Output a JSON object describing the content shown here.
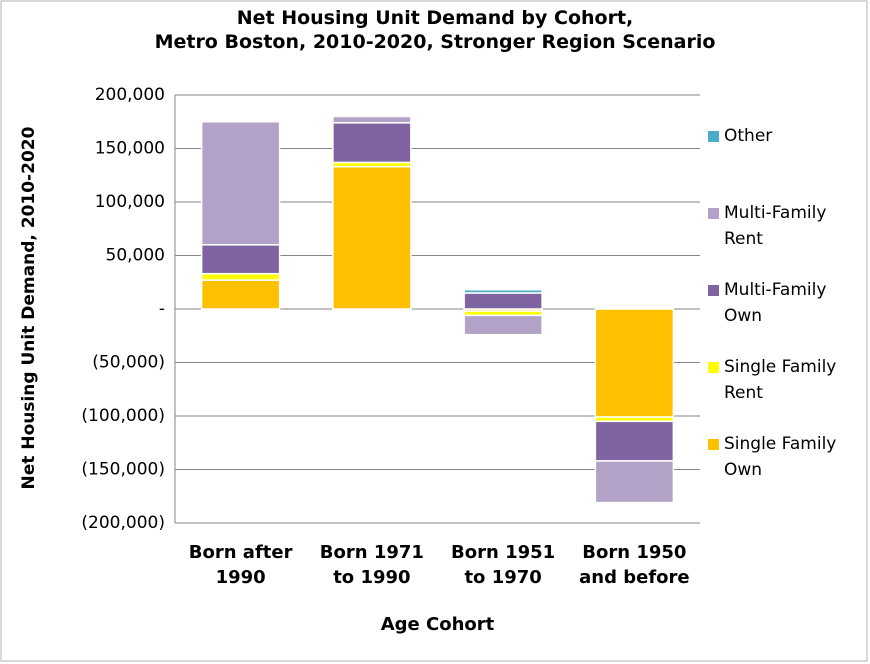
{
  "chart_data": {
    "type": "stacked-bar",
    "title": "Net Housing Unit Demand by Cohort,\nMetro Boston, 2010-2020, Stronger Region Scenario",
    "x_label": "Age Cohort",
    "y_label": "Net Housing Unit Demand, 2010-2020",
    "categories": [
      "Born after\n1990",
      "Born 1971\nto 1990",
      "Born 1951\nto 1970",
      "Born 1950\nand before"
    ],
    "series": [
      {
        "name": "Single Family\nOwn",
        "color": "#ffc000",
        "values": [
          27000,
          133000,
          -2000,
          -101000
        ]
      },
      {
        "name": "Single Family\nRent",
        "color": "#ffff00",
        "values": [
          6000,
          4000,
          -4000,
          -4000
        ]
      },
      {
        "name": "Multi-Family\nOwn",
        "color": "#8064a2",
        "values": [
          27000,
          37000,
          15000,
          -37000
        ]
      },
      {
        "name": "Multi-Family\nRent",
        "color": "#b3a2c7",
        "values": [
          115000,
          6000,
          -18000,
          -39000
        ]
      },
      {
        "name": "Other",
        "color": "#4bacc6",
        "values": [
          500,
          500,
          3000,
          -500
        ]
      }
    ],
    "ylim": [
      -200000,
      200000
    ],
    "yticks": [
      {
        "value": -200000,
        "label": "(200,000)"
      },
      {
        "value": -150000,
        "label": "(150,000)"
      },
      {
        "value": -100000,
        "label": "(100,000)"
      },
      {
        "value": -50000,
        "label": "(50,000)"
      },
      {
        "value": 0,
        "label": "-"
      },
      {
        "value": 50000,
        "label": "50,000"
      },
      {
        "value": 100000,
        "label": "100,000"
      },
      {
        "value": 150000,
        "label": "150,000"
      },
      {
        "value": 200000,
        "label": "200,000"
      }
    ],
    "grid": true,
    "legend": "right"
  }
}
